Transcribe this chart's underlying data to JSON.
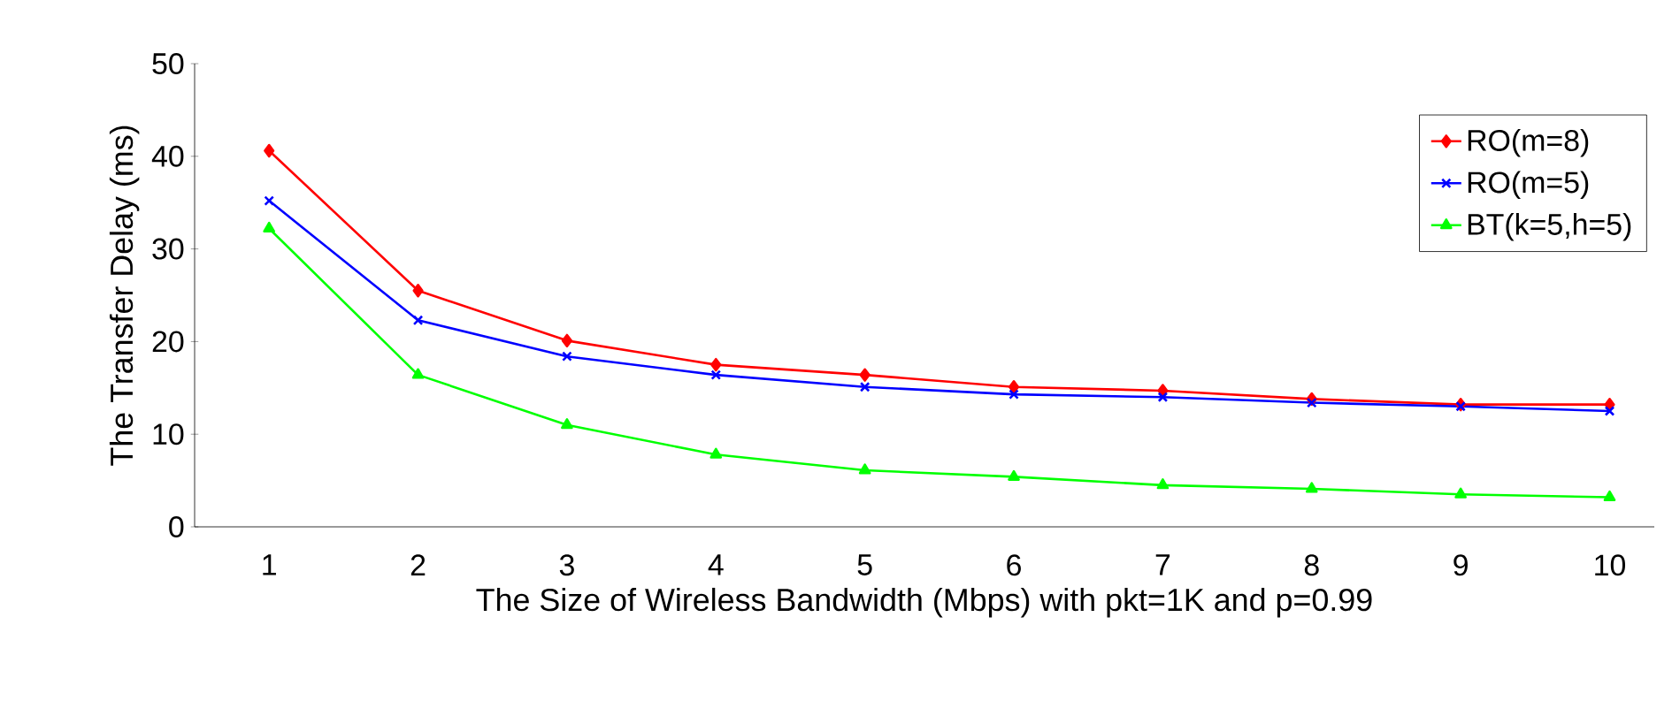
{
  "chart_data": {
    "type": "line",
    "xlabel": "The Size of Wireless Bandwidth (Mbps) with pkt=1K and p=0.99",
    "ylabel": "The Transfer Delay (ms)",
    "categories": [
      "1",
      "2",
      "3",
      "4",
      "5",
      "6",
      "7",
      "8",
      "9",
      "10"
    ],
    "series": [
      {
        "name": "RO(m=8)",
        "color": "#ff0000",
        "marker": "diamond",
        "values": [
          40.6,
          25.5,
          20.1,
          17.5,
          16.4,
          15.1,
          14.7,
          13.8,
          13.2,
          13.2
        ]
      },
      {
        "name": "RO(m=5)",
        "color": "#0000ff",
        "marker": "cross",
        "values": [
          35.2,
          22.3,
          18.4,
          16.4,
          15.1,
          14.3,
          14.0,
          13.4,
          13.0,
          12.5
        ]
      },
      {
        "name": "BT(k=5,h=5)",
        "color": "#00ff00",
        "marker": "triangle",
        "values": [
          32.2,
          16.4,
          11.0,
          7.8,
          6.1,
          5.4,
          4.5,
          4.1,
          3.5,
          3.2
        ]
      }
    ],
    "ylim": [
      0,
      50
    ],
    "yticks": [
      0,
      10,
      20,
      30,
      40,
      50
    ],
    "grid": false,
    "legend": "top right",
    "line_style": "solid"
  }
}
